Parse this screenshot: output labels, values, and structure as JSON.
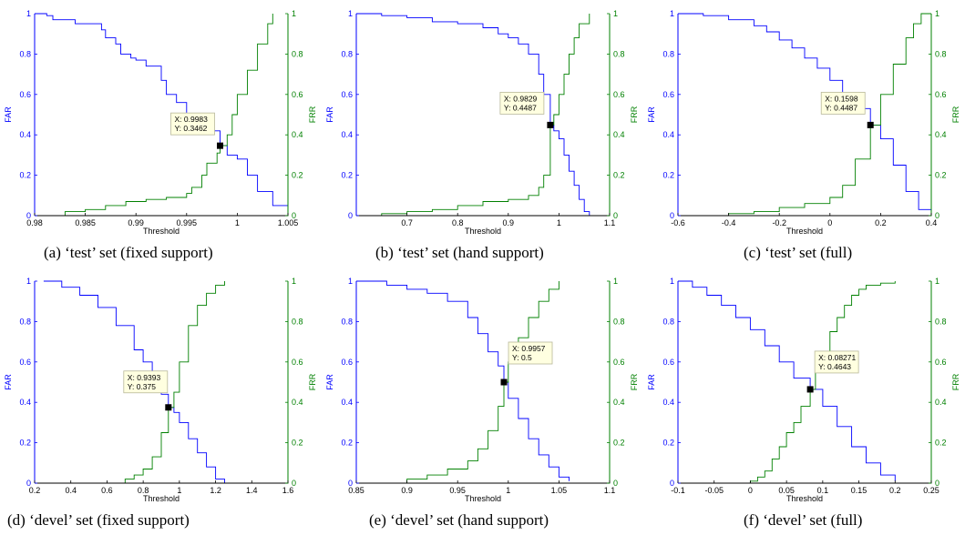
{
  "colors": {
    "far": "#0000ff",
    "frr": "#008000",
    "axis": "#000000",
    "tip_bg": "#ffffe0",
    "tip_border": "#b8b89a"
  },
  "chart_data": [
    {
      "type": "line",
      "caption": "(a) ‘test’ set (fixed support)",
      "xlabel": "Threshold",
      "ylabel_left": "FAR",
      "ylabel_right": "FRR",
      "xlim": [
        0.98,
        1.005
      ],
      "ylim": [
        0,
        1
      ],
      "xticks": [
        "0.98",
        "0.985",
        "0.99",
        "0.995",
        "1",
        "1.005"
      ],
      "yticks_left": [
        "0",
        "0.2",
        "0.4",
        "0.6",
        "0.8",
        "1"
      ],
      "yticks_right": [
        "0",
        "0.2",
        "0.4",
        "0.6",
        "0.8",
        "1"
      ],
      "series": [
        {
          "name": "FAR",
          "x": [
            0.98,
            0.9812,
            0.9818,
            0.984,
            0.985,
            0.9866,
            0.987,
            0.988,
            0.9885,
            0.9895,
            0.99,
            0.991,
            0.9925,
            0.993,
            0.994,
            0.995,
            0.996,
            0.997,
            0.9983,
            0.999,
            1.0,
            1.001,
            1.002,
            1.0035,
            1.005
          ],
          "y": [
            1.0,
            0.99,
            0.97,
            0.95,
            0.95,
            0.92,
            0.88,
            0.85,
            0.8,
            0.78,
            0.77,
            0.74,
            0.67,
            0.6,
            0.56,
            0.5,
            0.46,
            0.42,
            0.3462,
            0.3,
            0.28,
            0.2,
            0.12,
            0.05,
            0.01
          ]
        },
        {
          "name": "FRR",
          "x": [
            0.9812,
            0.983,
            0.985,
            0.987,
            0.989,
            0.991,
            0.993,
            0.995,
            0.9955,
            0.9965,
            0.997,
            0.998,
            0.9983,
            0.999,
            0.9995,
            1.0,
            1.001,
            1.002,
            1.003,
            1.0035
          ],
          "y": [
            0.0,
            0.02,
            0.03,
            0.05,
            0.07,
            0.08,
            0.09,
            0.11,
            0.14,
            0.2,
            0.26,
            0.31,
            0.3462,
            0.4,
            0.5,
            0.6,
            0.72,
            0.85,
            0.95,
            1.0
          ]
        }
      ],
      "datatip": {
        "x_text": "X: 0.9983",
        "y_text": "Y: 0.3462",
        "x": 0.9983,
        "y": 0.3462
      }
    },
    {
      "type": "line",
      "caption": "(b) ‘test’ set (hand support)",
      "xlabel": "Threshold",
      "ylabel_left": "FAR",
      "ylabel_right": "FRR",
      "xlim": [
        0.6,
        1.1
      ],
      "ylim": [
        0,
        1
      ],
      "xticks": [
        "0.7",
        "0.8",
        "0.9",
        "1",
        "1.1"
      ],
      "yticks_left": [
        "0",
        "0.2",
        "0.4",
        "0.6",
        "0.8",
        "1"
      ],
      "yticks_right": [
        "0",
        "0.2",
        "0.4",
        "0.6",
        "0.8",
        "1"
      ],
      "series": [
        {
          "name": "FAR",
          "x": [
            0.6,
            0.65,
            0.7,
            0.75,
            0.8,
            0.85,
            0.88,
            0.9,
            0.92,
            0.94,
            0.96,
            0.97,
            0.9829,
            0.99,
            1.0,
            1.01,
            1.02,
            1.03,
            1.04,
            1.05,
            1.06
          ],
          "y": [
            1.0,
            0.99,
            0.98,
            0.96,
            0.95,
            0.93,
            0.9,
            0.88,
            0.85,
            0.8,
            0.7,
            0.6,
            0.4487,
            0.42,
            0.38,
            0.3,
            0.22,
            0.15,
            0.08,
            0.02,
            0.0
          ]
        },
        {
          "name": "FRR",
          "x": [
            0.61,
            0.65,
            0.7,
            0.75,
            0.8,
            0.85,
            0.9,
            0.94,
            0.96,
            0.97,
            0.9829,
            0.99,
            1.0,
            1.01,
            1.02,
            1.03,
            1.04,
            1.06
          ],
          "y": [
            0.0,
            0.01,
            0.02,
            0.03,
            0.05,
            0.07,
            0.08,
            0.1,
            0.14,
            0.2,
            0.4487,
            0.5,
            0.6,
            0.7,
            0.8,
            0.88,
            0.95,
            1.0
          ]
        }
      ],
      "datatip": {
        "x_text": "X: 0.9829",
        "y_text": "Y: 0.4487",
        "x": 0.9829,
        "y": 0.4487
      }
    },
    {
      "type": "line",
      "caption": "(c) ‘test’ set (full)",
      "xlabel": "Threshold",
      "ylabel_left": "FAR",
      "ylabel_right": "FRR",
      "xlim": [
        -0.6,
        0.4
      ],
      "ylim": [
        0,
        1
      ],
      "xticks": [
        "-0.6",
        "-0.4",
        "-0.2",
        "0",
        "0.2",
        "0.4"
      ],
      "yticks_left": [
        "0",
        "0.2",
        "0.4",
        "0.6",
        "0.8",
        "1"
      ],
      "yticks_right": [
        "0",
        "0.2",
        "0.4",
        "0.6",
        "0.8",
        "1"
      ],
      "series": [
        {
          "name": "FAR",
          "x": [
            -0.6,
            -0.5,
            -0.4,
            -0.3,
            -0.25,
            -0.2,
            -0.15,
            -0.1,
            -0.05,
            0.0,
            0.05,
            0.1,
            0.1598,
            0.2,
            0.25,
            0.3,
            0.35,
            0.4
          ],
          "y": [
            1.0,
            0.99,
            0.97,
            0.94,
            0.91,
            0.87,
            0.83,
            0.78,
            0.73,
            0.67,
            0.6,
            0.53,
            0.4487,
            0.38,
            0.25,
            0.12,
            0.03,
            0.01
          ]
        },
        {
          "name": "FRR",
          "x": [
            -0.44,
            -0.4,
            -0.3,
            -0.2,
            -0.1,
            0.0,
            0.05,
            0.1,
            0.1598,
            0.2,
            0.25,
            0.3,
            0.33,
            0.36,
            0.4
          ],
          "y": [
            0.0,
            0.01,
            0.02,
            0.04,
            0.06,
            0.09,
            0.15,
            0.28,
            0.4487,
            0.6,
            0.75,
            0.88,
            0.95,
            1.0,
            1.0
          ]
        }
      ],
      "datatip": {
        "x_text": "X: 0.1598",
        "y_text": "Y: 0.4487",
        "x": 0.1598,
        "y": 0.4487
      }
    },
    {
      "type": "line",
      "caption": "(d) ‘devel’ set (fixed support)",
      "xlabel": "Threshold",
      "ylabel_left": "FAR",
      "ylabel_right": "FRR",
      "xlim": [
        0.2,
        1.6
      ],
      "ylim": [
        0,
        1
      ],
      "xticks": [
        "0.2",
        "0.4",
        "0.6",
        "0.8",
        "1",
        "1.2",
        "1.4",
        "1.6"
      ],
      "yticks_left": [
        "0",
        "0.2",
        "0.4",
        "0.6",
        "0.8",
        "1"
      ],
      "yticks_right": [
        "0",
        "0.2",
        "0.4",
        "0.6",
        "0.8",
        "1"
      ],
      "series": [
        {
          "name": "FAR",
          "x": [
            0.25,
            0.35,
            0.45,
            0.55,
            0.65,
            0.75,
            0.8,
            0.85,
            0.9,
            0.9393,
            0.97,
            1.0,
            1.05,
            1.1,
            1.15,
            1.2,
            1.25
          ],
          "y": [
            1.0,
            0.97,
            0.93,
            0.87,
            0.78,
            0.66,
            0.6,
            0.52,
            0.44,
            0.375,
            0.35,
            0.3,
            0.22,
            0.15,
            0.08,
            0.02,
            0.0
          ]
        },
        {
          "name": "FRR",
          "x": [
            0.6,
            0.7,
            0.75,
            0.8,
            0.85,
            0.9,
            0.9393,
            0.97,
            1.0,
            1.05,
            1.1,
            1.15,
            1.2,
            1.25
          ],
          "y": [
            0.0,
            0.02,
            0.04,
            0.07,
            0.13,
            0.25,
            0.375,
            0.45,
            0.6,
            0.78,
            0.88,
            0.94,
            0.98,
            1.0
          ]
        }
      ],
      "datatip": {
        "x_text": "X: 0.9393",
        "y_text": "Y: 0.375",
        "x": 0.9393,
        "y": 0.375
      }
    },
    {
      "type": "line",
      "caption": "(e) ‘devel’ set (hand support)",
      "xlabel": "Threshold",
      "ylabel_left": "FAR",
      "ylabel_right": "FRR",
      "xlim": [
        0.85,
        1.1
      ],
      "ylim": [
        0,
        1
      ],
      "xticks": [
        "0.85",
        "0.9",
        "0.95",
        "1",
        "1.05",
        "1.1"
      ],
      "yticks_left": [
        "0",
        "0.2",
        "0.4",
        "0.6",
        "0.8",
        "1"
      ],
      "yticks_right": [
        "0",
        "0.2",
        "0.4",
        "0.6",
        "0.8",
        "1"
      ],
      "series": [
        {
          "name": "FAR",
          "x": [
            0.85,
            0.88,
            0.9,
            0.92,
            0.94,
            0.96,
            0.97,
            0.98,
            0.99,
            0.9957,
            1.0,
            1.01,
            1.02,
            1.03,
            1.04,
            1.05,
            1.06
          ],
          "y": [
            1.0,
            0.98,
            0.96,
            0.94,
            0.9,
            0.82,
            0.74,
            0.65,
            0.58,
            0.5,
            0.42,
            0.32,
            0.22,
            0.14,
            0.08,
            0.03,
            0.01
          ]
        },
        {
          "name": "FRR",
          "x": [
            0.88,
            0.9,
            0.92,
            0.94,
            0.96,
            0.97,
            0.98,
            0.99,
            0.9957,
            1.0,
            1.01,
            1.02,
            1.03,
            1.04,
            1.05
          ],
          "y": [
            0.0,
            0.02,
            0.04,
            0.07,
            0.11,
            0.17,
            0.26,
            0.38,
            0.5,
            0.6,
            0.72,
            0.82,
            0.9,
            0.96,
            1.0
          ]
        }
      ],
      "datatip": {
        "x_text": "X: 0.9957",
        "y_text": "Y: 0.5",
        "x": 0.9957,
        "y": 0.5
      }
    },
    {
      "type": "line",
      "caption": "(f) ‘devel’ set (full)",
      "xlabel": "Threshold",
      "ylabel_left": "FAR",
      "ylabel_right": "FRR",
      "xlim": [
        -0.1,
        0.25
      ],
      "ylim": [
        0,
        1
      ],
      "xticks": [
        "-0.1",
        "-0.05",
        "0",
        "0.05",
        "0.1",
        "0.15",
        "0.2",
        "0.25"
      ],
      "yticks_left": [
        "0",
        "0.2",
        "0.4",
        "0.6",
        "0.8",
        "1"
      ],
      "yticks_right": [
        "0",
        "0.2",
        "0.4",
        "0.6",
        "0.8",
        "1"
      ],
      "series": [
        {
          "name": "FAR",
          "x": [
            -0.1,
            -0.08,
            -0.06,
            -0.04,
            -0.02,
            0.0,
            0.02,
            0.04,
            0.06,
            0.08271,
            0.1,
            0.12,
            0.14,
            0.16,
            0.18,
            0.2
          ],
          "y": [
            1.0,
            0.97,
            0.93,
            0.88,
            0.82,
            0.76,
            0.68,
            0.6,
            0.52,
            0.4643,
            0.38,
            0.28,
            0.18,
            0.1,
            0.04,
            0.01
          ]
        },
        {
          "name": "FRR",
          "x": [
            -0.02,
            0.0,
            0.01,
            0.02,
            0.03,
            0.04,
            0.05,
            0.06,
            0.07,
            0.08271,
            0.09,
            0.1,
            0.11,
            0.12,
            0.13,
            0.14,
            0.15,
            0.16,
            0.18,
            0.2
          ],
          "y": [
            0.0,
            0.01,
            0.03,
            0.06,
            0.12,
            0.18,
            0.25,
            0.3,
            0.38,
            0.4643,
            0.55,
            0.65,
            0.75,
            0.82,
            0.88,
            0.93,
            0.96,
            0.98,
            0.99,
            1.0
          ]
        }
      ],
      "datatip": {
        "x_text": "X: 0.08271",
        "y_text": "Y: 0.4643",
        "x": 0.08271,
        "y": 0.4643
      }
    }
  ]
}
